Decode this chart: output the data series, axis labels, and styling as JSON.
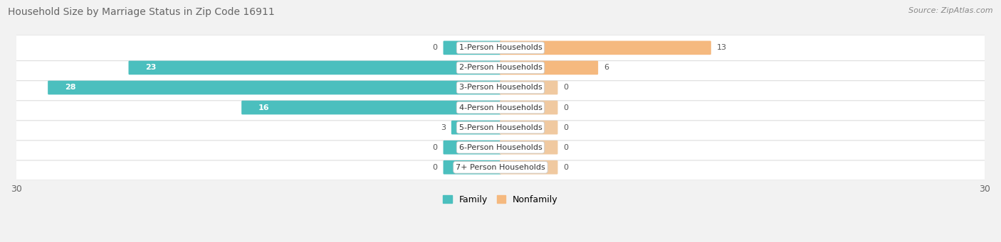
{
  "title": "Household Size by Marriage Status in Zip Code 16911",
  "source": "Source: ZipAtlas.com",
  "categories": [
    "7+ Person Households",
    "6-Person Households",
    "5-Person Households",
    "4-Person Households",
    "3-Person Households",
    "2-Person Households",
    "1-Person Households"
  ],
  "family_values": [
    0,
    0,
    3,
    16,
    28,
    23,
    0
  ],
  "nonfamily_values": [
    0,
    0,
    0,
    0,
    0,
    6,
    13
  ],
  "family_color": "#4BBFBE",
  "nonfamily_color": "#F5B97F",
  "nonfamily_color_small": "#F0C9A0",
  "axis_limit": 30,
  "background_color": "#f2f2f2",
  "row_bg_light": "#f9f9f9",
  "row_bg_white": "#ffffff",
  "title_fontsize": 10,
  "source_fontsize": 8,
  "bar_height": 0.6,
  "label_fontsize": 8,
  "tick_fontsize": 9,
  "stub_size": 3.5
}
